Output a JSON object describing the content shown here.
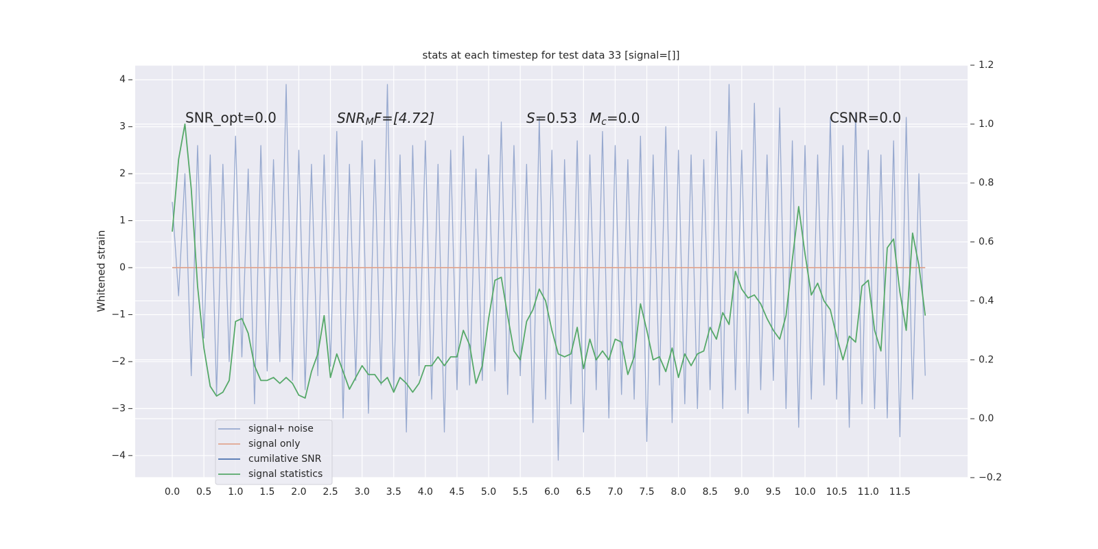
{
  "chart_data": {
    "type": "line",
    "title": "stats at each timestep for test data 33 [signal=[]]",
    "ylabel": "Whitened strain",
    "annotations": {
      "snr_opt": "SNR_opt=0.0",
      "snr_mf": {
        "main": "SNR",
        "sub": "M",
        "rest": "F=[4.72]"
      },
      "s_mc": {
        "s": "S",
        "s_rest": "=0.53",
        "m": "M",
        "m_sub": "c",
        "m_rest": "=0.0"
      },
      "csnr": "CSNR=0.0"
    },
    "x": [
      0,
      0.1,
      0.2,
      0.3,
      0.4,
      0.5,
      0.6,
      0.7,
      0.8,
      0.9,
      1.0,
      1.1,
      1.2,
      1.3,
      1.4,
      1.5,
      1.6,
      1.7,
      1.8,
      1.9,
      2.0,
      2.1,
      2.2,
      2.3,
      2.4,
      2.5,
      2.6,
      2.7,
      2.8,
      2.9,
      3.0,
      3.1,
      3.2,
      3.3,
      3.4,
      3.5,
      3.6,
      3.7,
      3.8,
      3.9,
      4.0,
      4.1,
      4.2,
      4.3,
      4.4,
      4.5,
      4.6,
      4.7,
      4.8,
      4.9,
      5.0,
      5.1,
      5.2,
      5.3,
      5.4,
      5.5,
      5.6,
      5.7,
      5.8,
      5.9,
      6.0,
      6.1,
      6.2,
      6.3,
      6.4,
      6.5,
      6.6,
      6.7,
      6.8,
      6.9,
      7.0,
      7.1,
      7.2,
      7.3,
      7.4,
      7.5,
      7.6,
      7.7,
      7.8,
      7.9,
      8.0,
      8.1,
      8.2,
      8.3,
      8.4,
      8.5,
      8.6,
      8.7,
      8.8,
      8.9,
      9.0,
      9.1,
      9.2,
      9.3,
      9.4,
      9.5,
      9.6,
      9.7,
      9.8,
      9.9,
      10.0,
      10.1,
      10.2,
      10.3,
      10.4,
      10.5,
      10.6,
      10.7,
      10.8,
      10.9,
      11.0,
      11.1,
      11.2,
      11.3,
      11.4,
      11.5,
      11.6,
      11.7,
      11.8,
      11.9
    ],
    "series": [
      {
        "name": "signal+ noise",
        "color": "#97a9cf",
        "values": [
          1.4,
          -0.6,
          2.0,
          -2.3,
          2.6,
          -1.5,
          2.4,
          -2.7,
          2.2,
          -2.0,
          2.8,
          -1.9,
          2.1,
          -2.9,
          2.6,
          -2.2,
          2.3,
          -2.0,
          3.9,
          -2.4,
          2.5,
          -2.6,
          2.2,
          -2.3,
          2.4,
          -2.1,
          2.9,
          -3.2,
          2.2,
          -2.4,
          2.7,
          -3.1,
          2.3,
          -2.5,
          3.9,
          -2.6,
          2.4,
          -3.5,
          2.6,
          -2.3,
          2.7,
          -2.8,
          2.2,
          -3.5,
          2.5,
          -2.6,
          2.8,
          -2.5,
          2.1,
          -2.4,
          2.4,
          -2.2,
          3.1,
          -2.7,
          2.6,
          -2.3,
          2.2,
          -3.3,
          3.2,
          -2.8,
          2.5,
          -4.1,
          2.3,
          -2.9,
          2.7,
          -3.5,
          2.4,
          -2.6,
          2.9,
          -3.2,
          2.6,
          -2.7,
          2.3,
          -2.8,
          2.8,
          -3.7,
          2.4,
          -2.5,
          3.0,
          -3.3,
          2.5,
          -2.9,
          2.4,
          -3.0,
          2.3,
          -2.6,
          2.9,
          -3.0,
          3.9,
          -2.6,
          2.5,
          -3.1,
          3.5,
          -2.6,
          2.4,
          -2.4,
          3.4,
          -3.0,
          2.7,
          -3.4,
          2.6,
          -2.8,
          2.4,
          -2.5,
          3.2,
          -2.8,
          2.6,
          -3.4,
          3.3,
          -2.9,
          2.5,
          -3.0,
          2.4,
          -3.2,
          2.7,
          -3.6,
          3.2,
          -2.8,
          2.0,
          -2.3
        ]
      },
      {
        "name": "signal only",
        "color": "#e0a58f",
        "values": [
          0,
          0,
          0,
          0,
          0,
          0,
          0,
          0,
          0,
          0,
          0,
          0,
          0,
          0,
          0,
          0,
          0,
          0,
          0,
          0,
          0,
          0,
          0,
          0,
          0,
          0,
          0,
          0,
          0,
          0,
          0,
          0,
          0,
          0,
          0,
          0,
          0,
          0,
          0,
          0,
          0,
          0,
          0,
          0,
          0,
          0,
          0,
          0,
          0,
          0,
          0,
          0,
          0,
          0,
          0,
          0,
          0,
          0,
          0,
          0,
          0,
          0,
          0,
          0,
          0,
          0,
          0,
          0,
          0,
          0,
          0,
          0,
          0,
          0,
          0,
          0,
          0,
          0,
          0,
          0,
          0,
          0,
          0,
          0,
          0,
          0,
          0,
          0,
          0,
          0,
          0,
          0,
          0,
          0,
          0,
          0,
          0,
          0,
          0,
          0,
          0,
          0,
          0,
          0,
          0,
          0,
          0,
          0,
          0,
          0,
          0,
          0,
          0,
          0,
          0,
          0,
          0,
          0,
          0,
          0
        ]
      },
      {
        "name": "cumilative SNR",
        "color": "#4c72b0",
        "axis": "y2",
        "values": [
          null,
          null,
          null,
          null,
          null,
          null,
          null,
          null,
          null,
          null,
          null,
          null,
          null,
          null,
          null,
          null,
          null,
          null,
          null,
          null,
          null,
          null,
          null,
          null,
          null,
          null,
          null,
          null,
          null,
          null,
          null,
          null,
          null,
          null,
          null,
          null,
          null,
          null,
          null,
          null,
          null,
          null,
          null,
          null,
          null,
          null,
          null,
          null,
          null,
          null,
          null,
          null,
          null,
          null,
          null,
          null,
          null,
          null,
          null,
          null,
          null,
          null,
          null,
          null,
          null,
          null,
          null,
          null,
          null,
          null,
          null,
          null,
          null,
          null,
          null,
          null,
          null,
          null,
          null,
          null,
          null,
          null,
          null,
          null,
          null,
          null,
          null,
          null,
          null,
          null,
          null,
          null,
          null,
          null,
          null,
          null,
          null,
          null,
          null,
          null,
          null,
          null,
          null,
          null,
          null,
          null,
          null,
          null,
          null,
          null,
          null,
          null,
          null,
          null,
          null,
          null,
          null,
          null,
          null,
          null
        ]
      },
      {
        "name": "signal statistics",
        "color": "#55a868",
        "axis": "y2",
        "values": [
          0.635,
          0.88,
          1.0,
          0.78,
          0.45,
          0.24,
          0.11,
          0.077,
          0.09,
          0.13,
          0.33,
          0.34,
          0.29,
          0.18,
          0.13,
          0.13,
          0.14,
          0.12,
          0.14,
          0.12,
          0.08,
          0.07,
          0.16,
          0.22,
          0.35,
          0.14,
          0.22,
          0.16,
          0.1,
          0.14,
          0.18,
          0.15,
          0.15,
          0.12,
          0.14,
          0.09,
          0.14,
          0.12,
          0.09,
          0.12,
          0.18,
          0.18,
          0.21,
          0.18,
          0.21,
          0.21,
          0.3,
          0.25,
          0.12,
          0.18,
          0.34,
          0.47,
          0.48,
          0.35,
          0.23,
          0.2,
          0.33,
          0.37,
          0.44,
          0.4,
          0.3,
          0.22,
          0.21,
          0.22,
          0.31,
          0.17,
          0.27,
          0.2,
          0.23,
          0.2,
          0.27,
          0.26,
          0.15,
          0.21,
          0.39,
          0.3,
          0.2,
          0.21,
          0.16,
          0.24,
          0.14,
          0.22,
          0.18,
          0.22,
          0.23,
          0.31,
          0.27,
          0.36,
          0.32,
          0.5,
          0.44,
          0.41,
          0.42,
          0.39,
          0.34,
          0.3,
          0.27,
          0.35,
          0.54,
          0.72,
          0.56,
          0.42,
          0.46,
          0.4,
          0.37,
          0.28,
          0.2,
          0.28,
          0.26,
          0.45,
          0.47,
          0.3,
          0.23,
          0.58,
          0.61,
          0.43,
          0.3,
          0.63,
          0.52,
          0.35
        ]
      }
    ],
    "xlim": [
      -0.586,
      12.57
    ],
    "xticks": [
      {
        "value": 0,
        "label": "0.0"
      },
      0.5,
      {
        "value": 1,
        "label": "1.0"
      },
      1.5,
      {
        "value": 2,
        "label": "2.0"
      },
      2.5,
      {
        "value": 3,
        "label": "3.0"
      },
      3.5,
      {
        "value": 4,
        "label": "4.0"
      },
      4.5,
      {
        "value": 5,
        "label": "5.0"
      },
      5.5,
      {
        "value": 6,
        "label": "6.0"
      },
      6.5,
      {
        "value": 7,
        "label": "7.0"
      },
      7.5,
      {
        "value": 8,
        "label": "8.0"
      },
      8.5,
      {
        "value": 9,
        "label": "9.0"
      },
      9.5,
      {
        "value": 10,
        "label": "10.0"
      },
      10.5,
      {
        "value": 11,
        "label": "11.0"
      },
      11.5
    ],
    "ylim": [
      -4.47,
      4.31
    ],
    "yticks": [
      {
        "value": -4,
        "label": "−4"
      },
      {
        "value": -3,
        "label": "−3"
      },
      {
        "value": -2,
        "label": "−2"
      },
      {
        "value": -1,
        "label": "−1"
      },
      0,
      1,
      2,
      3,
      4
    ],
    "y2lim": [
      -0.2,
      1.2
    ],
    "y2ticks": [
      {
        "value": -0.2,
        "label": "−0.2"
      },
      {
        "value": 0,
        "label": "0.0"
      },
      0.2,
      0.4,
      0.6,
      0.8,
      {
        "value": 1,
        "label": "1.0"
      },
      1.2
    ],
    "grid": true
  }
}
